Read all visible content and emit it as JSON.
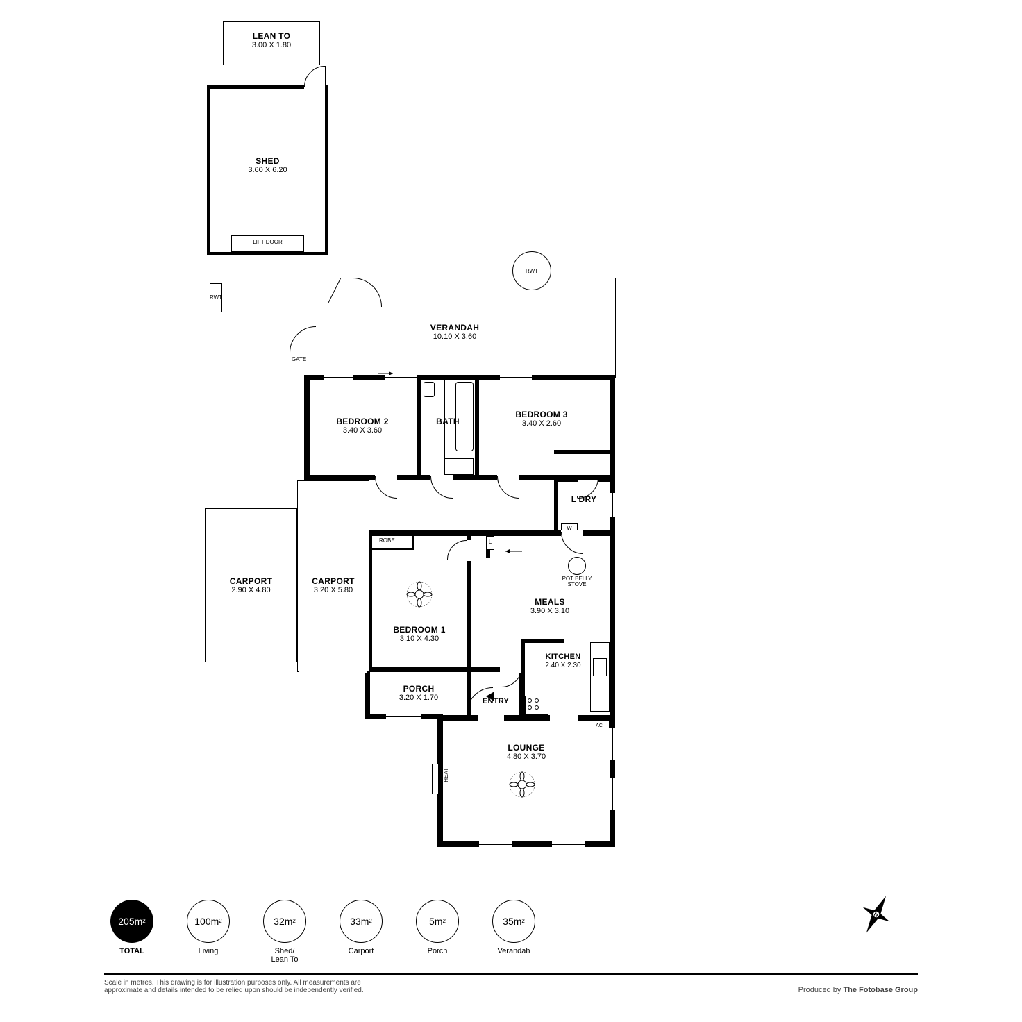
{
  "colors": {
    "wall": "#000000",
    "bg": "#ffffff",
    "text": "#000000",
    "muted": "#444444"
  },
  "stroke": {
    "thick": 8,
    "mid": 5,
    "thin": 2,
    "hairline": 1
  },
  "rooms": {
    "lean_to": {
      "name": "LEAN TO",
      "dim": "3.00 X 1.80"
    },
    "shed": {
      "name": "SHED",
      "dim": "3.60 X 6.20"
    },
    "verandah": {
      "name": "VERANDAH",
      "dim": "10.10 X 3.60"
    },
    "bedroom2": {
      "name": "BEDROOM 2",
      "dim": "3.40 X 3.60"
    },
    "bath": {
      "name": "BATH",
      "dim": ""
    },
    "bedroom3": {
      "name": "BEDROOM 3",
      "dim": "3.40 X 2.60"
    },
    "ldry": {
      "name": "L'DRY",
      "dim": ""
    },
    "carport1": {
      "name": "CARPORT",
      "dim": "2.90 X 4.80"
    },
    "carport2": {
      "name": "CARPORT",
      "dim": "3.20 X 5.80"
    },
    "bedroom1": {
      "name": "BEDROOM 1",
      "dim": "3.10 X 4.30"
    },
    "meals": {
      "name": "MEALS",
      "dim": "3.90 X 3.10"
    },
    "kitchen": {
      "name": "KITCHEN",
      "dim": "2.40 X 2.30"
    },
    "porch": {
      "name": "PORCH",
      "dim": "3.20 X 1.70"
    },
    "entry": {
      "name": "ENTRY",
      "dim": ""
    },
    "lounge": {
      "name": "LOUNGE",
      "dim": "4.80 X 3.70"
    }
  },
  "labels": {
    "lift_door": "LIFT DOOR",
    "rwt": "RWT",
    "gate": "GATE",
    "robe": "ROBE",
    "l": "L",
    "w": "W",
    "pot_belly": "POT BELLY",
    "stove": "STOVE",
    "heat": "HEAT",
    "ac": "AC"
  },
  "badges": [
    {
      "value": "205m",
      "sup": "2",
      "label": "TOTAL",
      "filled": true,
      "bold": true
    },
    {
      "value": "100m",
      "sup": "2",
      "label": "Living",
      "filled": false,
      "bold": false
    },
    {
      "value": "32m",
      "sup": "2",
      "label": "Shed/\nLean To",
      "filled": false,
      "bold": false
    },
    {
      "value": "33m",
      "sup": "2",
      "label": "Carport",
      "filled": false,
      "bold": false
    },
    {
      "value": "5m",
      "sup": "2",
      "label": "Porch",
      "filled": false,
      "bold": false
    },
    {
      "value": "35m",
      "sup": "2",
      "label": "Verandah",
      "filled": false,
      "bold": false
    }
  ],
  "disclaimer": "Scale in metres. This drawing is for illustration purposes only. All measurements are\napproximate and details intended to be relied upon should be independently verified.",
  "producer_prefix": "Produced by ",
  "producer_name": "The Fotobase Group",
  "compass_label": "N"
}
